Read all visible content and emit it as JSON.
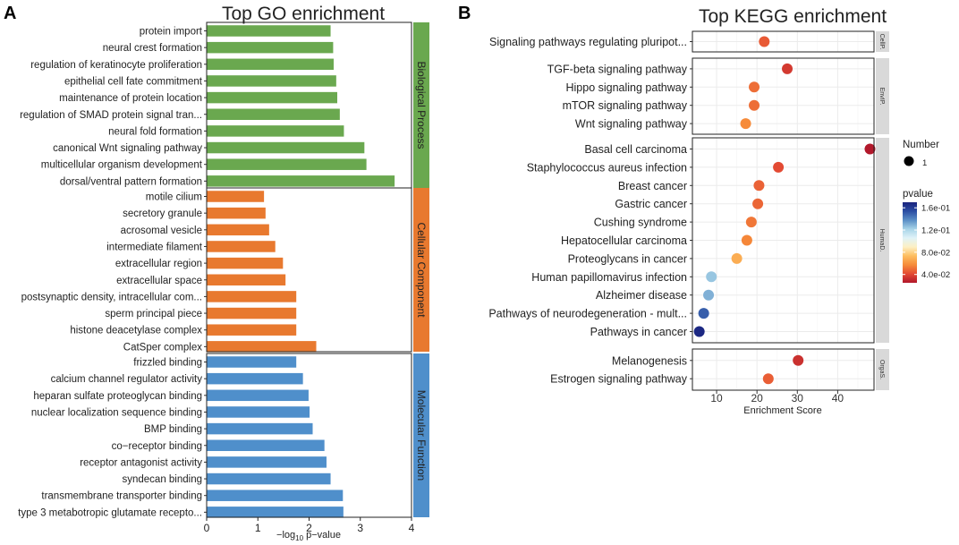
{
  "panel_labels": {
    "a": "A",
    "b": "B"
  },
  "chart_data": [
    {
      "type": "bar",
      "orientation": "horizontal",
      "title": "Top GO enrichment",
      "xlabel_prefix": "−log",
      "xlabel_sub": "10",
      "xlabel_suffix": " p−value",
      "xlim": [
        0,
        4
      ],
      "xticks": [
        0,
        1,
        2,
        3,
        4
      ],
      "groups": [
        {
          "name": "Biological Process",
          "color": "#6aa84f",
          "categories": [
            "protein import",
            "neural crest formation",
            "regulation of keratinocyte proliferation",
            "epithelial cell fate commitment",
            "maintenance of protein location",
            "regulation of SMAD protein signal tran...",
            "neural fold formation",
            "canonical Wnt signaling pathway",
            "multicellular organism development",
            "dorsal/ventral pattern formation"
          ],
          "values": [
            2.42,
            2.47,
            2.48,
            2.53,
            2.55,
            2.6,
            2.68,
            3.08,
            3.12,
            3.67
          ]
        },
        {
          "name": "Cellular Component",
          "color": "#e8792f",
          "categories": [
            "motile cilium",
            "secretory granule",
            "acrosomal vesicle",
            "intermediate filament",
            "extracellular region",
            "extracellular space",
            "postsynaptic density, intracellular com...",
            "sperm principal piece",
            "histone deacetylase complex",
            "CatSper complex"
          ],
          "values": [
            1.12,
            1.15,
            1.22,
            1.34,
            1.49,
            1.54,
            1.75,
            1.75,
            1.75,
            2.14
          ]
        },
        {
          "name": "Molecular Function",
          "color": "#4f8fcb",
          "categories": [
            "frizzled binding",
            "calcium channel regulator activity",
            "heparan sulfate proteoglycan binding",
            "nuclear localization sequence binding",
            "BMP binding",
            "co−receptor binding",
            "receptor antagonist activity",
            "syndecan binding",
            "transmembrane transporter binding",
            "type 3 metabotropic glutamate recepto..."
          ],
          "values": [
            1.75,
            1.88,
            1.99,
            2.01,
            2.07,
            2.3,
            2.34,
            2.42,
            2.66,
            2.67
          ]
        }
      ]
    },
    {
      "type": "scatter",
      "title": "Top KEGG enrichment",
      "xlabel": "Enrichment Score",
      "xlim": [
        4,
        49
      ],
      "xticks": [
        10,
        20,
        30,
        40
      ],
      "facets": [
        {
          "name": "CellP.",
          "pathways": [
            {
              "name": "Signaling pathways regulating pluripot...",
              "score": 21.8,
              "pvalue": 0.045
            }
          ]
        },
        {
          "name": "EnvIP.",
          "pathways": [
            {
              "name": "TGF-beta signaling pathway",
              "score": 27.5,
              "pvalue": 0.036
            },
            {
              "name": "Hippo signaling pathway",
              "score": 19.3,
              "pvalue": 0.05
            },
            {
              "name": "mTOR signaling pathway",
              "score": 19.3,
              "pvalue": 0.05
            },
            {
              "name": "Wnt signaling pathway",
              "score": 17.2,
              "pvalue": 0.057
            }
          ]
        },
        {
          "name": "HumaD.",
          "pathways": [
            {
              "name": "Basal cell carcinoma",
              "score": 48.0,
              "pvalue": 0.025
            },
            {
              "name": "Staphylococcus aureus infection",
              "score": 25.3,
              "pvalue": 0.041
            },
            {
              "name": "Breast cancer",
              "score": 20.5,
              "pvalue": 0.047
            },
            {
              "name": "Gastric cancer",
              "score": 20.2,
              "pvalue": 0.048
            },
            {
              "name": "Cushing syndrome",
              "score": 18.6,
              "pvalue": 0.052
            },
            {
              "name": "Hepatocellular carcinoma",
              "score": 17.5,
              "pvalue": 0.056
            },
            {
              "name": "Proteoglycans in cancer",
              "score": 15.0,
              "pvalue": 0.068
            },
            {
              "name": "Human papillomavirus infection",
              "score": 8.7,
              "pvalue": 0.125
            },
            {
              "name": "Alzheimer disease",
              "score": 8.0,
              "pvalue": 0.13
            },
            {
              "name": "Pathways of neurodegeneration - mult...",
              "score": 6.8,
              "pvalue": 0.15
            },
            {
              "name": "Pathways in cancer",
              "score": 5.7,
              "pvalue": 0.168
            }
          ]
        },
        {
          "name": "OrgaS.",
          "pathways": [
            {
              "name": "Melanogenesis",
              "score": 30.2,
              "pvalue": 0.033
            },
            {
              "name": "Estrogen signaling pathway",
              "score": 22.8,
              "pvalue": 0.046
            }
          ]
        }
      ],
      "legend_size": {
        "title": "Number",
        "label": "1"
      },
      "legend_color": {
        "title": "pvalue",
        "range": [
          0.025,
          0.17
        ],
        "ticks": [
          {
            "value": 0.16,
            "label": "1.6e-01"
          },
          {
            "value": 0.12,
            "label": "1.2e-01"
          },
          {
            "value": 0.08,
            "label": "8.0e-02"
          },
          {
            "value": 0.04,
            "label": "4.0e-02"
          }
        ],
        "stops": [
          "#b2182b",
          "#e34a33",
          "#f68c3a",
          "#fdbe5f",
          "#fdf0c4",
          "#e0f3f8",
          "#a8d4e8",
          "#5b8fc6",
          "#2c4ea3",
          "#1a237e"
        ]
      }
    }
  ]
}
